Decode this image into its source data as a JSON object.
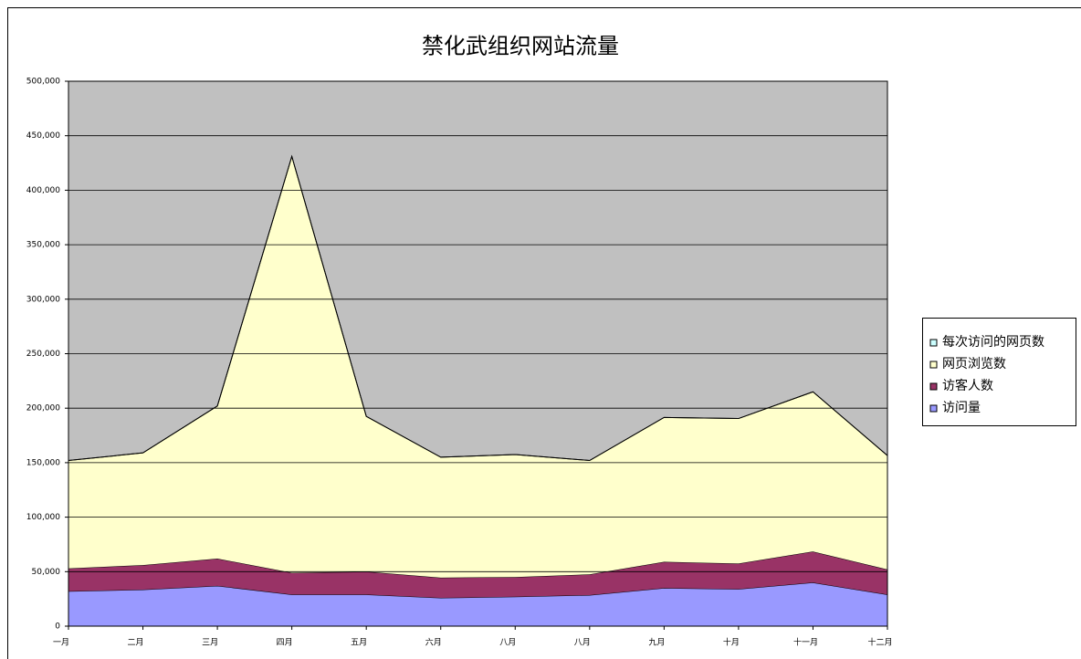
{
  "chart_data": {
    "type": "stacked_area",
    "title": "禁化武组织网站流量",
    "categories": [
      "一月",
      "二月",
      "三月",
      "四月",
      "五月",
      "六月",
      "八月",
      "八月",
      "九月",
      "十月",
      "十一月",
      "十二月"
    ],
    "series": [
      {
        "name": "访问量",
        "color": "#9999ff",
        "values": [
          32000,
          33500,
          37000,
          29000,
          29000,
          26000,
          27000,
          28500,
          35000,
          34000,
          40000,
          29000
        ]
      },
      {
        "name": "访客人数",
        "color": "#993366",
        "values": [
          21000,
          22500,
          25000,
          20000,
          21000,
          18500,
          18000,
          19000,
          24000,
          23500,
          28500,
          23000
        ]
      },
      {
        "name": "网页浏览数",
        "color": "#ffffcc",
        "values": [
          99000,
          103000,
          140000,
          382000,
          142500,
          110500,
          112500,
          104500,
          132500,
          133000,
          146500,
          104500
        ]
      },
      {
        "name": "每次访问的网页数",
        "color": "#ccffff",
        "values": [
          2,
          2,
          2,
          2,
          2,
          2,
          2,
          2,
          2,
          2,
          2,
          2
        ]
      }
    ],
    "ylim": [
      0,
      500000
    ],
    "yticks": [
      0,
      {
        "value": 50000,
        "label": "50,000"
      },
      {
        "value": 100000,
        "label": "100,000"
      },
      {
        "value": 150000,
        "label": "150,000"
      },
      {
        "value": 200000,
        "label": "200,000"
      },
      {
        "value": 250000,
        "label": "250,000"
      },
      {
        "value": 300000,
        "label": "300,000"
      },
      {
        "value": 350000,
        "label": "350,000"
      },
      {
        "value": 400000,
        "label": "400,000"
      },
      {
        "value": 450000,
        "label": "450,000"
      },
      {
        "value": 500000,
        "label": "500,000"
      }
    ],
    "grid": true,
    "legend": "right",
    "plot_background": "#c0c0c0"
  }
}
